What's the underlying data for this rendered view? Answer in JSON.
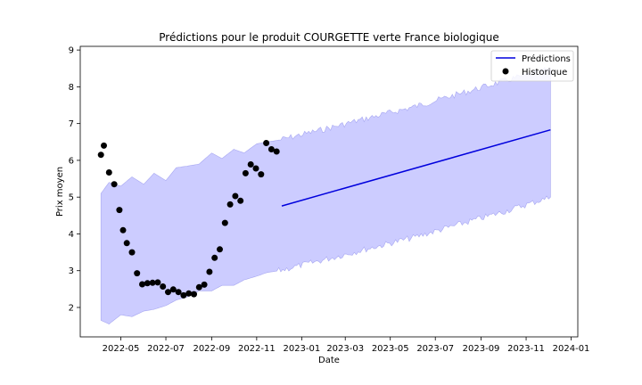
{
  "chart_data": {
    "type": "line",
    "title": "Prédictions pour le produit COURGETTE verte France biologique",
    "xlabel": "Date",
    "ylabel": "Prix moyen",
    "x_ticks": [
      "2022-05",
      "2022-07",
      "2022-09",
      "2022-11",
      "2023-01",
      "2023-03",
      "2023-05",
      "2023-07",
      "2023-09",
      "2023-11",
      "2024-01"
    ],
    "y_ticks": [
      2,
      3,
      4,
      5,
      6,
      7,
      8,
      9
    ],
    "xlim": [
      "2022-03-07",
      "2024-01-10"
    ],
    "ylim": [
      1.2,
      9.1
    ],
    "legend": {
      "position": "top-right",
      "entries": [
        {
          "label": "Prédictions",
          "type": "line",
          "color": "#0000dd"
        },
        {
          "label": "Historique",
          "type": "marker",
          "color": "#000000"
        }
      ]
    },
    "colors": {
      "prediction_line": "#0000dd",
      "interval_fill": "#ccccff",
      "interval_edge": "#9999ee",
      "history": "#000000"
    },
    "series": [
      {
        "name": "Historique",
        "kind": "scatter",
        "points": [
          {
            "x": "2022-04-04",
            "y": 6.15
          },
          {
            "x": "2022-04-08",
            "y": 6.4
          },
          {
            "x": "2022-04-15",
            "y": 5.67
          },
          {
            "x": "2022-04-22",
            "y": 5.35
          },
          {
            "x": "2022-04-29",
            "y": 4.65
          },
          {
            "x": "2022-05-04",
            "y": 4.1
          },
          {
            "x": "2022-05-09",
            "y": 3.75
          },
          {
            "x": "2022-05-16",
            "y": 3.5
          },
          {
            "x": "2022-05-23",
            "y": 2.93
          },
          {
            "x": "2022-05-30",
            "y": 2.63
          },
          {
            "x": "2022-06-06",
            "y": 2.66
          },
          {
            "x": "2022-06-13",
            "y": 2.67
          },
          {
            "x": "2022-06-20",
            "y": 2.68
          },
          {
            "x": "2022-06-27",
            "y": 2.57
          },
          {
            "x": "2022-07-04",
            "y": 2.42
          },
          {
            "x": "2022-07-11",
            "y": 2.49
          },
          {
            "x": "2022-07-18",
            "y": 2.42
          },
          {
            "x": "2022-07-25",
            "y": 2.33
          },
          {
            "x": "2022-08-01",
            "y": 2.38
          },
          {
            "x": "2022-08-08",
            "y": 2.36
          },
          {
            "x": "2022-08-15",
            "y": 2.55
          },
          {
            "x": "2022-08-22",
            "y": 2.62
          },
          {
            "x": "2022-08-29",
            "y": 2.97
          },
          {
            "x": "2022-09-05",
            "y": 3.35
          },
          {
            "x": "2022-09-12",
            "y": 3.58
          },
          {
            "x": "2022-09-19",
            "y": 4.3
          },
          {
            "x": "2022-09-26",
            "y": 4.8
          },
          {
            "x": "2022-10-03",
            "y": 5.03
          },
          {
            "x": "2022-10-10",
            "y": 4.9
          },
          {
            "x": "2022-10-17",
            "y": 5.65
          },
          {
            "x": "2022-10-24",
            "y": 5.89
          },
          {
            "x": "2022-10-31",
            "y": 5.78
          },
          {
            "x": "2022-11-07",
            "y": 5.62
          },
          {
            "x": "2022-11-14",
            "y": 6.47
          },
          {
            "x": "2022-11-21",
            "y": 6.3
          },
          {
            "x": "2022-11-28",
            "y": 6.24
          }
        ]
      },
      {
        "name": "Prédictions",
        "kind": "line",
        "points": [
          {
            "x": "2022-12-05",
            "y": 4.76
          },
          {
            "x": "2023-12-04",
            "y": 6.83
          }
        ]
      }
    ],
    "prediction_interval": {
      "upper": [
        {
          "x": "2022-04-04",
          "y": 5.1
        },
        {
          "x": "2022-04-15",
          "y": 5.4
        },
        {
          "x": "2022-05-01",
          "y": 5.3
        },
        {
          "x": "2022-05-16",
          "y": 5.55
        },
        {
          "x": "2022-06-01",
          "y": 5.35
        },
        {
          "x": "2022-06-15",
          "y": 5.65
        },
        {
          "x": "2022-07-01",
          "y": 5.45
        },
        {
          "x": "2022-07-15",
          "y": 5.8
        },
        {
          "x": "2022-08-01",
          "y": 5.85
        },
        {
          "x": "2022-08-15",
          "y": 5.9
        },
        {
          "x": "2022-09-01",
          "y": 6.2
        },
        {
          "x": "2022-09-15",
          "y": 6.05
        },
        {
          "x": "2022-10-01",
          "y": 6.3
        },
        {
          "x": "2022-10-15",
          "y": 6.2
        },
        {
          "x": "2022-11-01",
          "y": 6.45
        },
        {
          "x": "2022-11-15",
          "y": 6.5
        },
        {
          "x": "2022-12-01",
          "y": 6.55
        },
        {
          "x": "2023-02-01",
          "y": 6.85
        },
        {
          "x": "2023-04-01",
          "y": 7.15
        },
        {
          "x": "2023-06-01",
          "y": 7.45
        },
        {
          "x": "2023-08-01",
          "y": 7.8
        },
        {
          "x": "2023-10-01",
          "y": 8.15
        },
        {
          "x": "2023-12-04",
          "y": 8.5
        }
      ],
      "lower": [
        {
          "x": "2022-04-04",
          "y": 1.65
        },
        {
          "x": "2022-04-15",
          "y": 1.55
        },
        {
          "x": "2022-05-01",
          "y": 1.8
        },
        {
          "x": "2022-05-16",
          "y": 1.75
        },
        {
          "x": "2022-06-01",
          "y": 1.9
        },
        {
          "x": "2022-06-15",
          "y": 1.95
        },
        {
          "x": "2022-07-01",
          "y": 2.05
        },
        {
          "x": "2022-07-15",
          "y": 2.2
        },
        {
          "x": "2022-08-01",
          "y": 2.3
        },
        {
          "x": "2022-08-15",
          "y": 2.45
        },
        {
          "x": "2022-09-01",
          "y": 2.45
        },
        {
          "x": "2022-09-15",
          "y": 2.6
        },
        {
          "x": "2022-10-01",
          "y": 2.6
        },
        {
          "x": "2022-10-15",
          "y": 2.75
        },
        {
          "x": "2022-11-01",
          "y": 2.85
        },
        {
          "x": "2022-11-15",
          "y": 2.95
        },
        {
          "x": "2022-12-01",
          "y": 3.0
        },
        {
          "x": "2023-02-01",
          "y": 3.3
        },
        {
          "x": "2023-04-01",
          "y": 3.6
        },
        {
          "x": "2023-06-01",
          "y": 3.9
        },
        {
          "x": "2023-08-01",
          "y": 4.25
        },
        {
          "x": "2023-10-01",
          "y": 4.6
        },
        {
          "x": "2023-12-04",
          "y": 5.0
        }
      ]
    }
  }
}
